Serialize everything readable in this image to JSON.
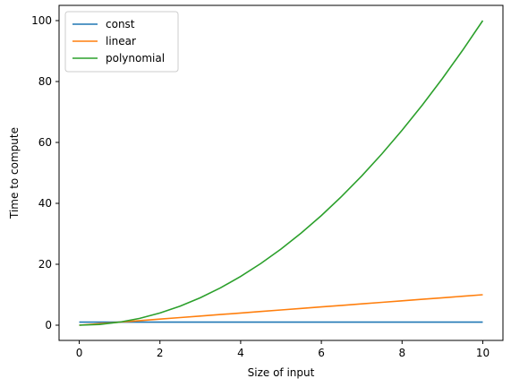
{
  "chart_data": {
    "type": "line",
    "title": "",
    "xlabel": "Size of input",
    "ylabel": "Time to compute",
    "xlim": [
      -0.5,
      10.5
    ],
    "ylim": [
      -5,
      105
    ],
    "xticks": [
      0,
      2,
      4,
      6,
      8,
      10
    ],
    "yticks": [
      0,
      20,
      40,
      60,
      80,
      100
    ],
    "grid": false,
    "legend_position": "top-left",
    "x": [
      0,
      0.5,
      1,
      1.5,
      2,
      2.5,
      3,
      3.5,
      4,
      4.5,
      5,
      5.5,
      6,
      6.5,
      7,
      7.5,
      8,
      8.5,
      9,
      9.5,
      10
    ],
    "series": [
      {
        "name": "const",
        "color": "#1f77b4",
        "values": [
          1,
          1,
          1,
          1,
          1,
          1,
          1,
          1,
          1,
          1,
          1,
          1,
          1,
          1,
          1,
          1,
          1,
          1,
          1,
          1,
          1
        ]
      },
      {
        "name": "linear",
        "color": "#ff7f0e",
        "values": [
          0,
          0.5,
          1,
          1.5,
          2,
          2.5,
          3,
          3.5,
          4,
          4.5,
          5,
          5.5,
          6,
          6.5,
          7,
          7.5,
          8,
          8.5,
          9,
          9.5,
          10
        ]
      },
      {
        "name": "polynomial",
        "color": "#2ca02c",
        "values": [
          0,
          0.25,
          1,
          2.25,
          4,
          6.25,
          9,
          12.25,
          16,
          20.25,
          25,
          30.25,
          36,
          42.25,
          49,
          56.25,
          64,
          72.25,
          81,
          90.25,
          100
        ]
      }
    ]
  }
}
